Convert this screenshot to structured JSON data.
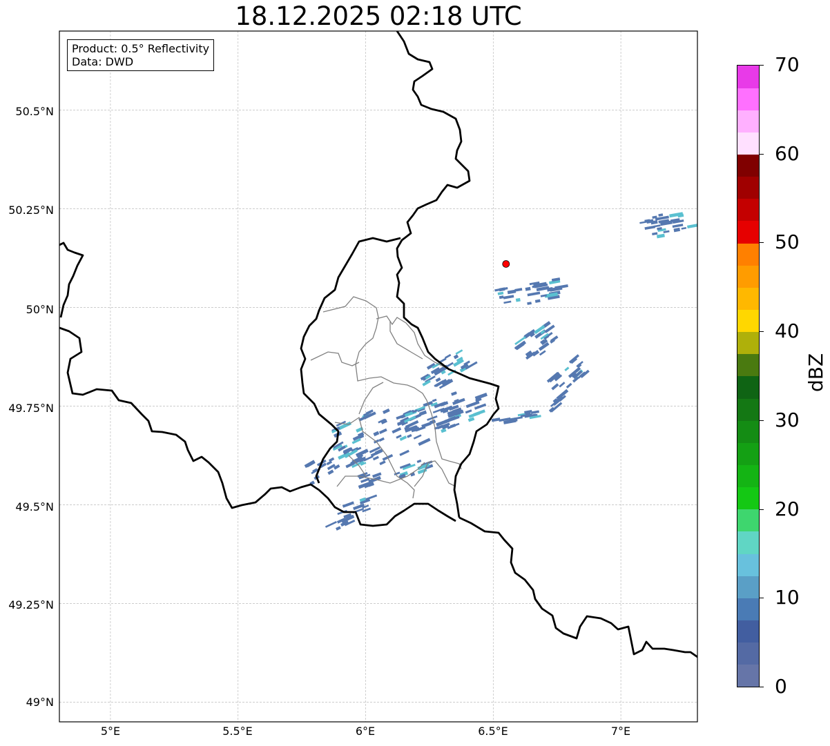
{
  "title": "18.12.2025 02:18 UTC",
  "info_box": {
    "product": "Product: 0.5° Reflectivity",
    "source": "Data: DWD"
  },
  "axes": {
    "y_ticks": [
      "50.5°N",
      "50.25°N",
      "50°N",
      "49.75°N",
      "49.5°N",
      "49.25°N",
      "49°N"
    ],
    "x_ticks": [
      "5°E",
      "5.5°E",
      "6°E",
      "6.5°E",
      "7°E"
    ],
    "lon_range": [
      4.8,
      7.3
    ],
    "lat_range": [
      48.95,
      50.7
    ],
    "grid": true
  },
  "colorbar": {
    "unit": "dBZ",
    "min": 0,
    "max": 70,
    "tick_labels": [
      "0",
      "10",
      "20",
      "30",
      "40",
      "50",
      "60",
      "70"
    ],
    "colors": [
      "#6675a8",
      "#546aa4",
      "#425ea0",
      "#4a7bb5",
      "#5a9fc6",
      "#68c1dd",
      "#60d6c4",
      "#3ed66e",
      "#14c814",
      "#14b414",
      "#14a014",
      "#148c14",
      "#147814",
      "#0f6414",
      "#4a7a10",
      "#afb00a",
      "#ffd700",
      "#ffb800",
      "#ff9c00",
      "#ff8000",
      "#e60000",
      "#c40000",
      "#a00000",
      "#800000",
      "#ffe0ff",
      "#ffb0ff",
      "#ff70ff",
      "#e83ae8"
    ]
  },
  "radar_site": {
    "lon": 6.55,
    "lat": 50.11,
    "color": "#ff0000"
  },
  "colors": {
    "border": "#000000",
    "admin": "#808080",
    "echo_main": "#5578b0",
    "echo_light": "#5ac0d0"
  }
}
